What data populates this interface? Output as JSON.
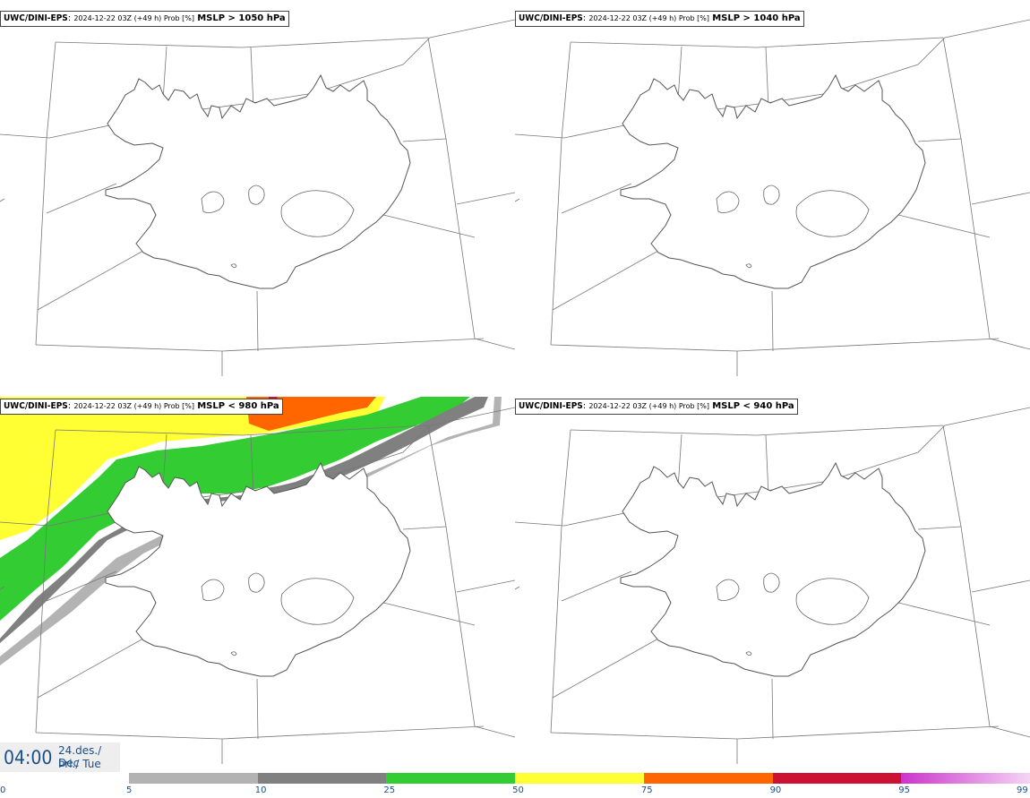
{
  "panels": [
    {
      "model": "UWC/DINI-EPS",
      "run": "2024-12-22 03Z (+49 h) Prob [%]",
      "threshold": "MSLP > 1050 hPa"
    },
    {
      "model": "UWC/DINI-EPS",
      "run": "2024-12-22 03Z (+49 h) Prob [%]",
      "threshold": "MSLP > 1040 hPa"
    },
    {
      "model": "UWC/DINI-EPS",
      "run": "2024-12-22 03Z (+49 h) Prob [%]",
      "threshold": "MSLP < 980 hPa"
    },
    {
      "model": "UWC/DINI-EPS",
      "run": "2024-12-22 03Z (+49 h) Prob [%]",
      "threshold": "MSLP < 940 hPa"
    }
  ],
  "valid_time": {
    "time": "04:00",
    "date_line1": "24.des./ Dec",
    "date_line2": "Þri./ Tue"
  },
  "colorbar": {
    "ticks": [
      "0",
      "5",
      "10",
      "25",
      "50",
      "75",
      "90",
      "95",
      "99"
    ],
    "colors": [
      "#b3b3b3",
      "#808080",
      "#33cc33",
      "#ffff33",
      "#ff6600",
      "#cc1133",
      "#cc33cc"
    ]
  }
}
